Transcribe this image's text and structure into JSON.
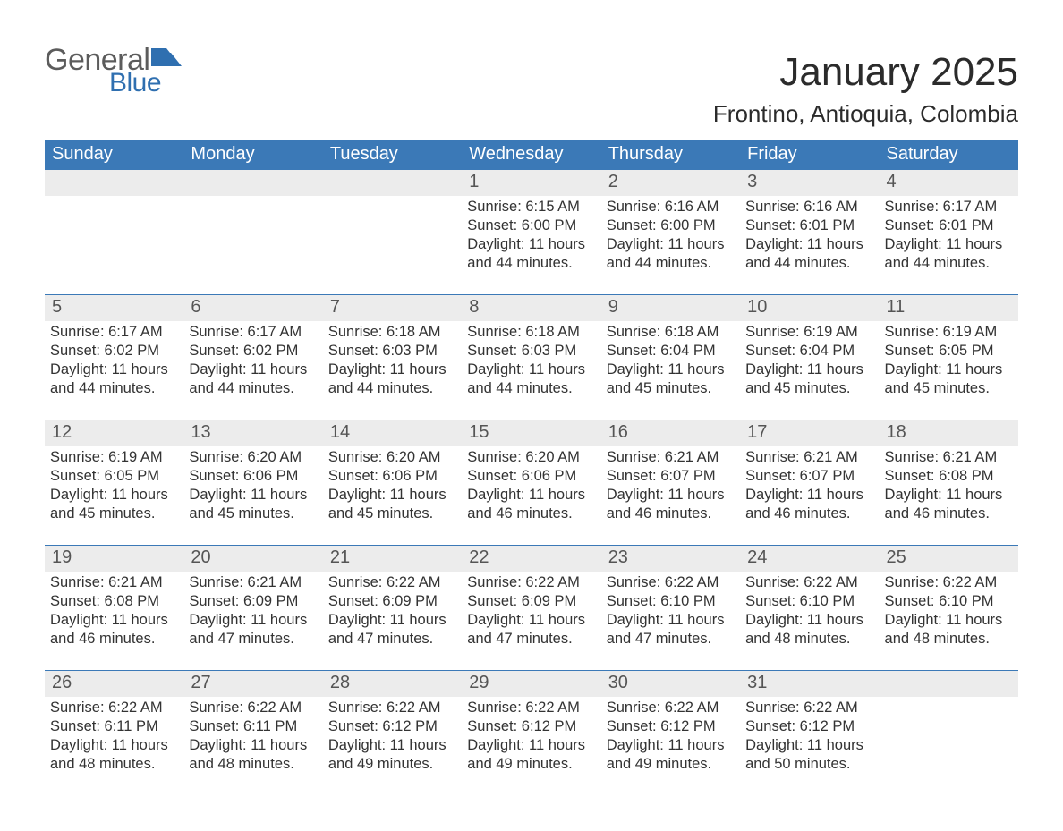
{
  "brand": {
    "word1": "General",
    "word2": "Blue"
  },
  "title": "January 2025",
  "subtitle": "Frontino, Antioquia, Colombia",
  "colors": {
    "header_bg": "#3b79b7",
    "header_text": "#ffffff",
    "daynum_bg": "#ececec",
    "daynum_border": "#3b79b7",
    "daynum_text": "#555555",
    "body_text": "#333333",
    "logo_gray": "#5c5c5c",
    "logo_blue": "#2f6fb0",
    "page_bg": "#ffffff"
  },
  "weekdays": [
    "Sunday",
    "Monday",
    "Tuesday",
    "Wednesday",
    "Thursday",
    "Friday",
    "Saturday"
  ],
  "weeks": [
    [
      null,
      null,
      null,
      {
        "day": "1",
        "sunrise": "Sunrise: 6:15 AM",
        "sunset": "Sunset: 6:00 PM",
        "daylight": "Daylight: 11 hours and 44 minutes."
      },
      {
        "day": "2",
        "sunrise": "Sunrise: 6:16 AM",
        "sunset": "Sunset: 6:00 PM",
        "daylight": "Daylight: 11 hours and 44 minutes."
      },
      {
        "day": "3",
        "sunrise": "Sunrise: 6:16 AM",
        "sunset": "Sunset: 6:01 PM",
        "daylight": "Daylight: 11 hours and 44 minutes."
      },
      {
        "day": "4",
        "sunrise": "Sunrise: 6:17 AM",
        "sunset": "Sunset: 6:01 PM",
        "daylight": "Daylight: 11 hours and 44 minutes."
      }
    ],
    [
      {
        "day": "5",
        "sunrise": "Sunrise: 6:17 AM",
        "sunset": "Sunset: 6:02 PM",
        "daylight": "Daylight: 11 hours and 44 minutes."
      },
      {
        "day": "6",
        "sunrise": "Sunrise: 6:17 AM",
        "sunset": "Sunset: 6:02 PM",
        "daylight": "Daylight: 11 hours and 44 minutes."
      },
      {
        "day": "7",
        "sunrise": "Sunrise: 6:18 AM",
        "sunset": "Sunset: 6:03 PM",
        "daylight": "Daylight: 11 hours and 44 minutes."
      },
      {
        "day": "8",
        "sunrise": "Sunrise: 6:18 AM",
        "sunset": "Sunset: 6:03 PM",
        "daylight": "Daylight: 11 hours and 44 minutes."
      },
      {
        "day": "9",
        "sunrise": "Sunrise: 6:18 AM",
        "sunset": "Sunset: 6:04 PM",
        "daylight": "Daylight: 11 hours and 45 minutes."
      },
      {
        "day": "10",
        "sunrise": "Sunrise: 6:19 AM",
        "sunset": "Sunset: 6:04 PM",
        "daylight": "Daylight: 11 hours and 45 minutes."
      },
      {
        "day": "11",
        "sunrise": "Sunrise: 6:19 AM",
        "sunset": "Sunset: 6:05 PM",
        "daylight": "Daylight: 11 hours and 45 minutes."
      }
    ],
    [
      {
        "day": "12",
        "sunrise": "Sunrise: 6:19 AM",
        "sunset": "Sunset: 6:05 PM",
        "daylight": "Daylight: 11 hours and 45 minutes."
      },
      {
        "day": "13",
        "sunrise": "Sunrise: 6:20 AM",
        "sunset": "Sunset: 6:06 PM",
        "daylight": "Daylight: 11 hours and 45 minutes."
      },
      {
        "day": "14",
        "sunrise": "Sunrise: 6:20 AM",
        "sunset": "Sunset: 6:06 PM",
        "daylight": "Daylight: 11 hours and 45 minutes."
      },
      {
        "day": "15",
        "sunrise": "Sunrise: 6:20 AM",
        "sunset": "Sunset: 6:06 PM",
        "daylight": "Daylight: 11 hours and 46 minutes."
      },
      {
        "day": "16",
        "sunrise": "Sunrise: 6:21 AM",
        "sunset": "Sunset: 6:07 PM",
        "daylight": "Daylight: 11 hours and 46 minutes."
      },
      {
        "day": "17",
        "sunrise": "Sunrise: 6:21 AM",
        "sunset": "Sunset: 6:07 PM",
        "daylight": "Daylight: 11 hours and 46 minutes."
      },
      {
        "day": "18",
        "sunrise": "Sunrise: 6:21 AM",
        "sunset": "Sunset: 6:08 PM",
        "daylight": "Daylight: 11 hours and 46 minutes."
      }
    ],
    [
      {
        "day": "19",
        "sunrise": "Sunrise: 6:21 AM",
        "sunset": "Sunset: 6:08 PM",
        "daylight": "Daylight: 11 hours and 46 minutes."
      },
      {
        "day": "20",
        "sunrise": "Sunrise: 6:21 AM",
        "sunset": "Sunset: 6:09 PM",
        "daylight": "Daylight: 11 hours and 47 minutes."
      },
      {
        "day": "21",
        "sunrise": "Sunrise: 6:22 AM",
        "sunset": "Sunset: 6:09 PM",
        "daylight": "Daylight: 11 hours and 47 minutes."
      },
      {
        "day": "22",
        "sunrise": "Sunrise: 6:22 AM",
        "sunset": "Sunset: 6:09 PM",
        "daylight": "Daylight: 11 hours and 47 minutes."
      },
      {
        "day": "23",
        "sunrise": "Sunrise: 6:22 AM",
        "sunset": "Sunset: 6:10 PM",
        "daylight": "Daylight: 11 hours and 47 minutes."
      },
      {
        "day": "24",
        "sunrise": "Sunrise: 6:22 AM",
        "sunset": "Sunset: 6:10 PM",
        "daylight": "Daylight: 11 hours and 48 minutes."
      },
      {
        "day": "25",
        "sunrise": "Sunrise: 6:22 AM",
        "sunset": "Sunset: 6:10 PM",
        "daylight": "Daylight: 11 hours and 48 minutes."
      }
    ],
    [
      {
        "day": "26",
        "sunrise": "Sunrise: 6:22 AM",
        "sunset": "Sunset: 6:11 PM",
        "daylight": "Daylight: 11 hours and 48 minutes."
      },
      {
        "day": "27",
        "sunrise": "Sunrise: 6:22 AM",
        "sunset": "Sunset: 6:11 PM",
        "daylight": "Daylight: 11 hours and 48 minutes."
      },
      {
        "day": "28",
        "sunrise": "Sunrise: 6:22 AM",
        "sunset": "Sunset: 6:12 PM",
        "daylight": "Daylight: 11 hours and 49 minutes."
      },
      {
        "day": "29",
        "sunrise": "Sunrise: 6:22 AM",
        "sunset": "Sunset: 6:12 PM",
        "daylight": "Daylight: 11 hours and 49 minutes."
      },
      {
        "day": "30",
        "sunrise": "Sunrise: 6:22 AM",
        "sunset": "Sunset: 6:12 PM",
        "daylight": "Daylight: 11 hours and 49 minutes."
      },
      {
        "day": "31",
        "sunrise": "Sunrise: 6:22 AM",
        "sunset": "Sunset: 6:12 PM",
        "daylight": "Daylight: 11 hours and 50 minutes."
      },
      null
    ]
  ]
}
